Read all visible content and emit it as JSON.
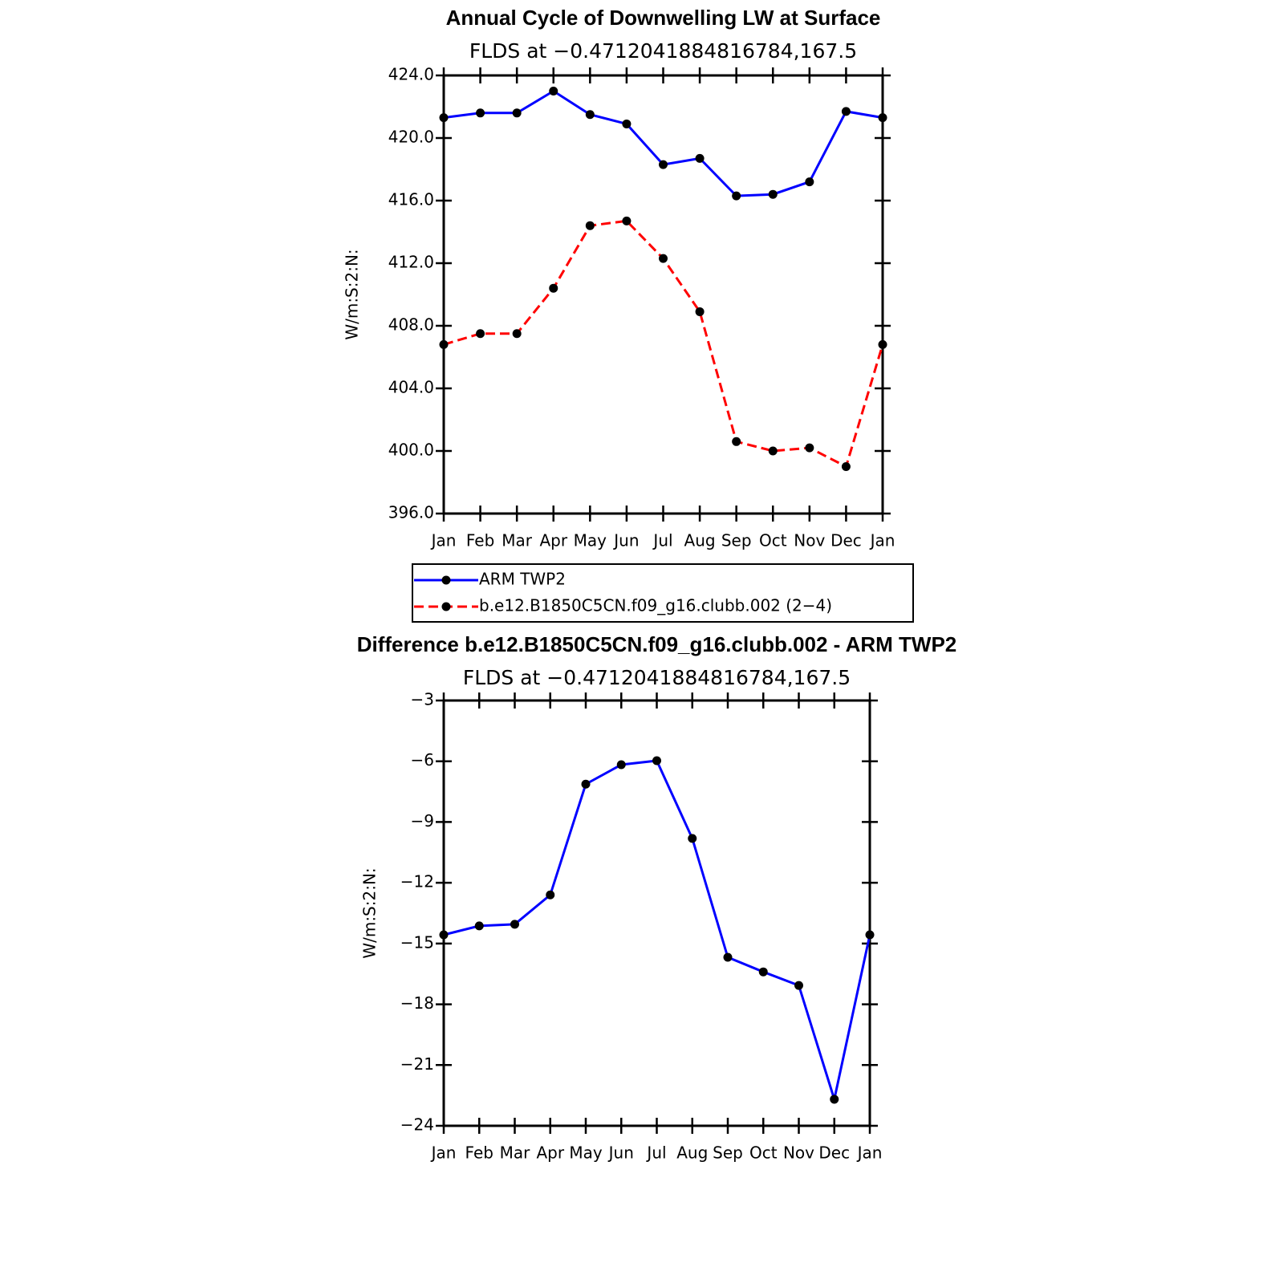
{
  "chart_data": [
    {
      "type": "line",
      "title": "Annual Cycle of Downwelling LW at Surface",
      "subtitle": "FLDS at −0.4712041884816784,167.5",
      "y_label": "W/m:S:2:N:",
      "categories": [
        "Jan",
        "Feb",
        "Mar",
        "Apr",
        "May",
        "Jun",
        "Jul",
        "Aug",
        "Sep",
        "Oct",
        "Nov",
        "Dec",
        "Jan"
      ],
      "series": [
        {
          "name": "ARM TWP2",
          "color": "#0000ff",
          "linestyle": "solid",
          "values": [
            421.3,
            421.6,
            421.6,
            423.0,
            421.5,
            420.9,
            418.3,
            418.7,
            416.3,
            416.4,
            417.2,
            421.7,
            421.3
          ]
        },
        {
          "name": "b.e12.B1850C5CN.f09_g16.clubb.002 (2−4)",
          "color": "#ff0000",
          "linestyle": "dashed",
          "values": [
            406.8,
            407.5,
            407.5,
            410.4,
            414.4,
            414.7,
            412.3,
            408.9,
            400.6,
            400.0,
            400.2,
            399.0,
            406.8
          ]
        }
      ],
      "ylim": [
        396,
        424
      ],
      "yticks": [
        {
          "value": 396,
          "label": "396.0"
        },
        {
          "value": 400,
          "label": "400.0"
        },
        {
          "value": 404,
          "label": "404.0"
        },
        {
          "value": 408,
          "label": "408.0"
        },
        {
          "value": 412,
          "label": "412.0"
        },
        {
          "value": 416,
          "label": "416.0"
        },
        {
          "value": 420,
          "label": "420.0"
        },
        {
          "value": 424,
          "label": "424.0"
        }
      ],
      "legend": "below"
    },
    {
      "type": "line",
      "title": "Difference b.e12.B1850C5CN.f09_g16.clubb.002 - ARM TWP2",
      "subtitle": "FLDS at −0.4712041884816784,167.5",
      "y_label": "W/m:S:2:N:",
      "categories": [
        "Jan",
        "Feb",
        "Mar",
        "Apr",
        "May",
        "Jun",
        "Jul",
        "Aug",
        "Sep",
        "Oct",
        "Nov",
        "Dec",
        "Jan"
      ],
      "values": [
        -14.57,
        -14.13,
        -14.05,
        -12.6,
        -7.13,
        -6.17,
        -5.97,
        -9.81,
        -15.68,
        -16.4,
        -17.07,
        -22.69,
        -14.57
      ],
      "color": "#0000ff",
      "ylim": [
        -24,
        -3
      ],
      "yticks": [
        {
          "value": -24,
          "label": "−24"
        },
        {
          "value": -21,
          "label": "−21"
        },
        {
          "value": -18,
          "label": "−18"
        },
        {
          "value": -15,
          "label": "−15"
        },
        {
          "value": -12,
          "label": "−12"
        },
        {
          "value": -9,
          "label": "−9"
        },
        {
          "value": -6,
          "label": "−6"
        },
        {
          "value": -3,
          "label": "−3"
        }
      ]
    }
  ]
}
